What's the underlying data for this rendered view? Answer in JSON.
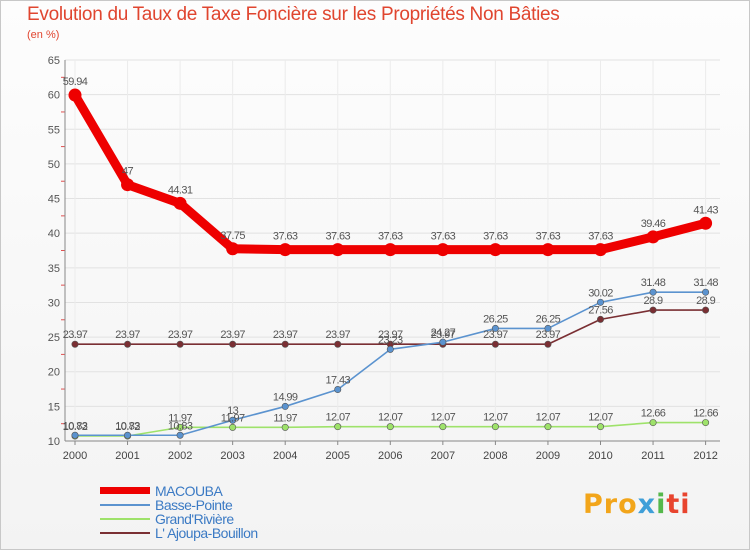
{
  "title": "Evolution du Taux de Taxe Foncière sur les Propriétés Non Bâties",
  "unit_label": "(en %)",
  "logo": {
    "text": "Proxiti",
    "parts": [
      "Pro",
      "x",
      "i",
      "ti"
    ]
  },
  "chart_data": {
    "type": "line",
    "title": "Evolution du Taux de Taxe Foncière sur les Propriétés Non Bâties",
    "ylabel": "(en %)",
    "xlabel": "",
    "ylim": [
      10,
      65
    ],
    "yticks": [
      10,
      15,
      20,
      25,
      30,
      35,
      40,
      45,
      50,
      55,
      60,
      65
    ],
    "categories": [
      "2000",
      "2001",
      "2002",
      "2003",
      "2004",
      "2005",
      "2006",
      "2007",
      "2008",
      "2009",
      "2010",
      "2011",
      "2012"
    ],
    "series": [
      {
        "name": "MACOUBA",
        "color": "#ee0000",
        "values": [
          59.94,
          47,
          44.31,
          37.75,
          37.63,
          37.63,
          37.63,
          37.63,
          37.63,
          37.63,
          37.63,
          39.46,
          41.43
        ],
        "labels": [
          "59.94",
          "47",
          "44.31",
          "37.75",
          "37.63",
          "37.63",
          "37.63",
          "37.63",
          "37.63",
          "37.63",
          "37.63",
          "39.46",
          "41.43"
        ]
      },
      {
        "name": "Basse-Pointe",
        "color": "#5b93cf",
        "values": [
          10.83,
          10.83,
          10.83,
          13,
          14.99,
          17.43,
          23.23,
          24.27,
          26.25,
          26.25,
          30.02,
          31.48,
          31.48
        ],
        "labels": [
          "10.83",
          "10.83",
          "10.83",
          "13",
          "14.99",
          "17.43",
          "23.23",
          "24.27",
          "26.25",
          "26.25",
          "30.02",
          "31.48",
          "31.48"
        ]
      },
      {
        "name": "Grand'Rivière",
        "color": "#9ee26a",
        "values": [
          10.72,
          10.72,
          11.97,
          11.97,
          11.97,
          12.07,
          12.07,
          12.07,
          12.07,
          12.07,
          12.07,
          12.66,
          12.66
        ],
        "labels": [
          "10.72",
          "10.72",
          "11.97",
          "11.97",
          "11.97",
          "12.07",
          "12.07",
          "12.07",
          "12.07",
          "12.07",
          "12.07",
          "12.66",
          "12.66"
        ]
      },
      {
        "name": "L' Ajoupa-Bouillon",
        "color": "#7a2f33",
        "values": [
          23.97,
          23.97,
          23.97,
          23.97,
          23.97,
          23.97,
          23.97,
          23.97,
          23.97,
          23.97,
          27.56,
          28.9,
          28.9
        ],
        "labels": [
          "23.97",
          "23.97",
          "23.97",
          "23.97",
          "23.97",
          "23.97",
          "23.97",
          "23.97",
          "23.97",
          "23.97",
          "27.56",
          "28.9",
          "28.9"
        ]
      }
    ]
  }
}
